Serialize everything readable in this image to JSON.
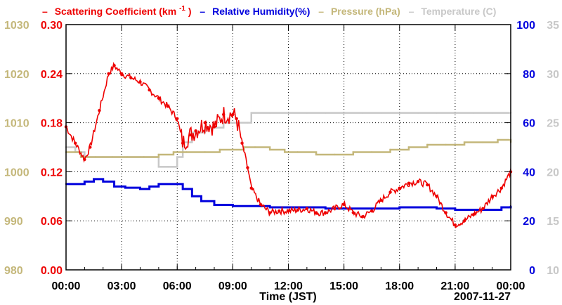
{
  "chart_data": {
    "type": "line",
    "date_label": "2007-11-27",
    "xlabel": "Time (JST)",
    "x_range_hours": [
      0,
      24
    ],
    "x_ticks": [
      "00:00",
      "03:00",
      "06:00",
      "09:00",
      "12:00",
      "15:00",
      "18:00",
      "21:00",
      "00:00"
    ],
    "grid": true,
    "legend": {
      "scattering": {
        "dash": "–",
        "text": "Scattering Coefficient (km",
        "sup": "-1",
        "close": ")"
      },
      "humidity": {
        "dash": "–",
        "text": "Relative Humidity(%)"
      },
      "pressure": {
        "dash": "–",
        "text": "Pressure (hPa)"
      },
      "temperature": {
        "dash": "–",
        "text": "Temperature (C)"
      }
    },
    "axes": {
      "pressure": {
        "label": "Pressure (hPa)",
        "range": [
          980,
          1030
        ],
        "ticks": [
          "980",
          "990",
          "1000",
          "1010",
          "1020",
          "1030"
        ],
        "color": "#c4b77a"
      },
      "scattering": {
        "label": "Scattering Coefficient",
        "range": [
          0,
          0.3
        ],
        "ticks": [
          "0.00",
          "0.06",
          "0.12",
          "0.18",
          "0.24",
          "0.30"
        ],
        "color": "#ee0000"
      },
      "humidity": {
        "label": "Relative Humidity(%)",
        "range": [
          0,
          100
        ],
        "ticks": [
          "0",
          "20",
          "40",
          "60",
          "80",
          "100"
        ],
        "color": "#0000dd"
      },
      "temperature": {
        "label": "Temperature (C)",
        "range": [
          10,
          35
        ],
        "ticks": [
          "10",
          "15",
          "20",
          "25",
          "30",
          "35"
        ],
        "color": "#c8c8c8"
      }
    },
    "series": [
      {
        "name": "Scattering Coefficient",
        "unit": "km-1",
        "color": "#ee0000",
        "axis": "scattering",
        "x": [
          0,
          0.5,
          1.0,
          1.3,
          1.8,
          2.3,
          2.6,
          3.0,
          3.5,
          4.0,
          4.5,
          5.0,
          5.5,
          6.0,
          6.3,
          6.7,
          7.0,
          7.5,
          8.0,
          8.5,
          9.0,
          9.2,
          9.5,
          9.8,
          10.0,
          10.5,
          11.0,
          11.5,
          12.0,
          12.5,
          13.0,
          13.5,
          14.0,
          14.5,
          15.0,
          15.5,
          16.0,
          16.5,
          17.0,
          17.5,
          18.0,
          18.5,
          19.0,
          19.5,
          20.0,
          20.5,
          21.0,
          21.5,
          22.0,
          22.5,
          23.0,
          23.5,
          24.0
        ],
        "values": [
          0.175,
          0.155,
          0.135,
          0.15,
          0.195,
          0.24,
          0.25,
          0.24,
          0.235,
          0.23,
          0.22,
          0.21,
          0.2,
          0.185,
          0.155,
          0.165,
          0.17,
          0.18,
          0.175,
          0.19,
          0.19,
          0.185,
          0.155,
          0.125,
          0.1,
          0.08,
          0.07,
          0.072,
          0.072,
          0.073,
          0.075,
          0.07,
          0.07,
          0.075,
          0.08,
          0.07,
          0.065,
          0.072,
          0.085,
          0.095,
          0.1,
          0.106,
          0.108,
          0.104,
          0.09,
          0.07,
          0.055,
          0.06,
          0.068,
          0.075,
          0.09,
          0.1,
          0.12
        ]
      },
      {
        "name": "Relative Humidity",
        "unit": "%",
        "color": "#0000dd",
        "axis": "humidity",
        "x": [
          0,
          1.0,
          1.5,
          2.0,
          2.6,
          3.2,
          4.0,
          4.5,
          5.0,
          5.5,
          6.0,
          6.3,
          6.8,
          7.3,
          8.0,
          9.0,
          10.0,
          11.0,
          12.0,
          13.0,
          14.0,
          15.0,
          16.0,
          17.0,
          18.0,
          19.0,
          20.0,
          21.0,
          22.0,
          23.0,
          23.5,
          24.0
        ],
        "values": [
          35,
          36,
          37,
          36,
          34,
          33.5,
          33,
          34,
          35,
          35,
          35,
          33,
          30,
          28,
          26.5,
          26,
          26,
          25.5,
          25.5,
          25.5,
          25,
          25,
          25,
          25,
          25.5,
          25.5,
          25,
          24.5,
          24.5,
          24.5,
          25.5,
          26
        ]
      },
      {
        "name": "Pressure",
        "unit": "hPa",
        "color": "#c4b77a",
        "axis": "pressure",
        "x": [
          0,
          0.8,
          1.6,
          2.5,
          3.3,
          4.2,
          5.0,
          5.8,
          6.5,
          7.5,
          8.3,
          9.0,
          9.6,
          10.2,
          11.0,
          11.8,
          12.5,
          13.5,
          14.5,
          15.5,
          16.5,
          17.5,
          18.5,
          19.5,
          20.5,
          21.5,
          22.5,
          23.3,
          24.0
        ],
        "values": [
          1004,
          1003,
          1003,
          1003,
          1003,
          1003,
          1003.5,
          1004,
          1004,
          1004,
          1004.5,
          1004.5,
          1005,
          1005,
          1004.5,
          1004,
          1004,
          1003.5,
          1003.5,
          1004,
          1004,
          1004.5,
          1005,
          1005.5,
          1005.5,
          1006,
          1006,
          1006.5,
          1006
        ]
      },
      {
        "name": "Temperature",
        "unit": "C",
        "color": "#c8c8c8",
        "axis": "temperature",
        "x": [
          0,
          0.5,
          1.0,
          2.0,
          3.0,
          4.0,
          5.0,
          5.5,
          6.0,
          6.3,
          6.8,
          7.5,
          8.5,
          9.2,
          9.8,
          10.0,
          11.0,
          12.0,
          13.0,
          14.0,
          15.0,
          16.0,
          17.0,
          18.0,
          19.0,
          20.0,
          21.0,
          22.0,
          23.0,
          24.0
        ],
        "values": [
          22.5,
          22,
          21.5,
          21.5,
          21.5,
          21.5,
          20.5,
          20.5,
          21.5,
          23,
          24,
          24.5,
          25,
          25,
          25,
          26,
          26,
          26,
          26,
          26,
          26,
          26,
          26,
          26,
          26,
          26,
          26,
          26,
          26,
          26
        ]
      }
    ]
  }
}
